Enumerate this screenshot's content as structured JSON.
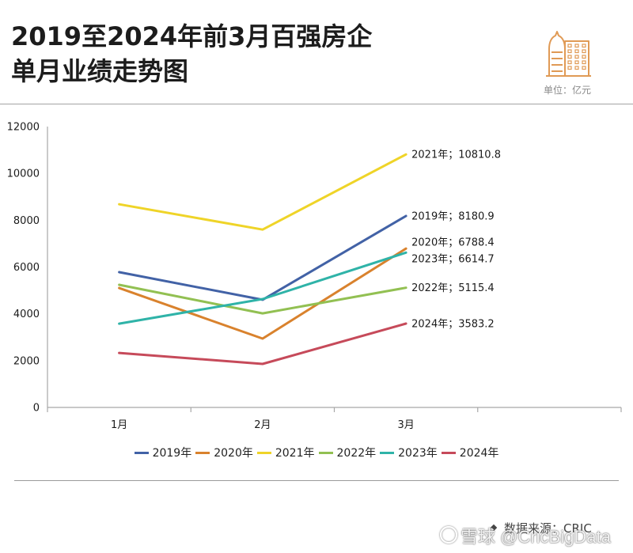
{
  "header": {
    "icon": "building-icon",
    "icon_color": "#e09a55"
  },
  "chart_data": {
    "type": "line",
    "title_lines": [
      "2019至2024年前3月百强房企",
      "单月业绩走势图"
    ],
    "unit": "单位：亿元",
    "categories": [
      "1月",
      "2月",
      "3月"
    ],
    "ylim": [
      0,
      12000
    ],
    "yticks": [
      0,
      2000,
      4000,
      6000,
      8000,
      10000,
      12000
    ],
    "grid": false,
    "legend": "bottom",
    "series": [
      {
        "name": "2019年",
        "color": "#4262a6",
        "values": [
          5780,
          4600,
          8180.9
        ],
        "data_label": "2019年；8180.9"
      },
      {
        "name": "2020年",
        "color": "#d9822d",
        "values": [
          5100,
          2940,
          6788.4
        ],
        "data_label": "2020年；6788.4"
      },
      {
        "name": "2021年",
        "color": "#efd428",
        "values": [
          8680,
          7600,
          10810.8
        ],
        "data_label": "2021年；10810.8"
      },
      {
        "name": "2022年",
        "color": "#92c052",
        "values": [
          5240,
          4020,
          5115.4
        ],
        "data_label": "2022年；5115.4"
      },
      {
        "name": "2023年",
        "color": "#2fb3a8",
        "values": [
          3580,
          4630,
          6614.7
        ],
        "data_label": "2023年；6614.7"
      },
      {
        "name": "2024年",
        "color": "#c64a5a",
        "values": [
          2330,
          1860,
          3583.2
        ],
        "data_label": "2024年；3583.2"
      }
    ]
  },
  "footer": {
    "source": "数据来源：CRIC",
    "watermark": "雪球 @CricBigData"
  }
}
